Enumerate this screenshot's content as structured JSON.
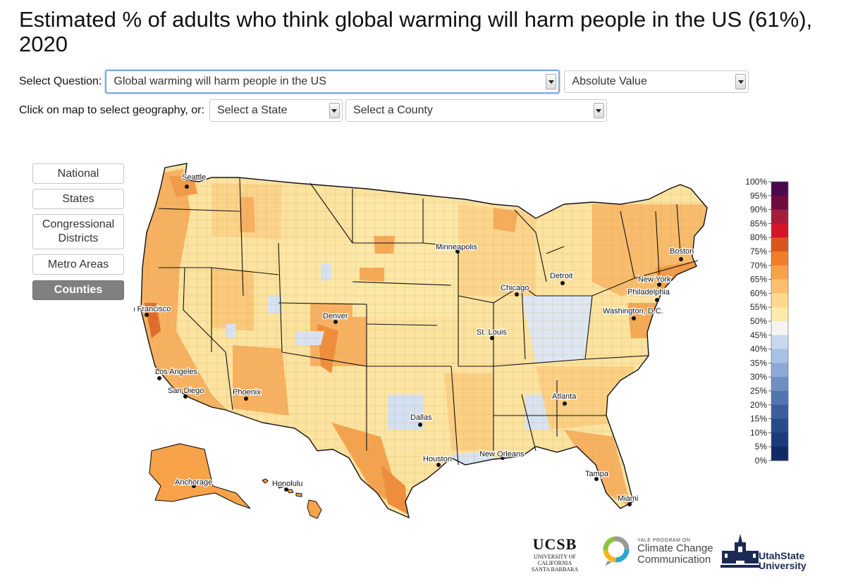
{
  "title": "Estimated % of adults who think global warming will harm people in the US (61%), 2020",
  "controls": {
    "question_label": "Select Question:",
    "question_value": "Global warming will harm people in the US",
    "mode_value": "Absolute Value",
    "geo_label": "Click on map to select geography, or:",
    "state_value": "Select a State",
    "county_value": "Select a County"
  },
  "geo_buttons": [
    {
      "label": "National",
      "active": false
    },
    {
      "label": "States",
      "active": false
    },
    {
      "label": "Congressional Districts",
      "active": false
    },
    {
      "label": "Metro Areas",
      "active": false
    },
    {
      "label": "Counties",
      "active": true
    }
  ],
  "cities": [
    "Seattle",
    "San Francisco",
    "Los Angeles",
    "San Diego",
    "Phoenix",
    "Denver",
    "Dallas",
    "Houston",
    "Minneapolis",
    "Chicago",
    "St. Louis",
    "Detroit",
    "Atlanta",
    "New Orleans",
    "Tampa",
    "Miami",
    "Washington, D.C.",
    "Philadelphia",
    "New York",
    "Boston",
    "Anchorage",
    "Honolulu"
  ],
  "legend": {
    "ticks": [
      "100%",
      "95%",
      "90%",
      "85%",
      "80%",
      "75%",
      "70%",
      "65%",
      "60%",
      "55%",
      "50%",
      "45%",
      "40%",
      "35%",
      "30%",
      "25%",
      "20%",
      "15%",
      "10%",
      "5%",
      "0%"
    ],
    "colors": [
      "#4a0a4f",
      "#6e0b3e",
      "#a31e3a",
      "#d6142a",
      "#d8581c",
      "#f07d2a",
      "#f8a24a",
      "#fcc06e",
      "#fdd88e",
      "#fde9a9",
      "#f4f4f4",
      "#c8d9ee",
      "#a6c2e4",
      "#8ea9d4",
      "#6f8fc3",
      "#5474b0",
      "#3c5c9c",
      "#284a8a",
      "#1b3a78",
      "#0f2a66"
    ]
  },
  "logos": {
    "ucsb_main": "UCSB",
    "ucsb_sub1": "UNIVERSITY OF CALIFORNIA",
    "ucsb_sub2": "SANTA BARBARA",
    "yale_top": "YALE PROGRAM ON",
    "yale_line1": "Climate Change",
    "yale_line2": "Communication",
    "usu_line1": "UtahState",
    "usu_line2": "University"
  }
}
